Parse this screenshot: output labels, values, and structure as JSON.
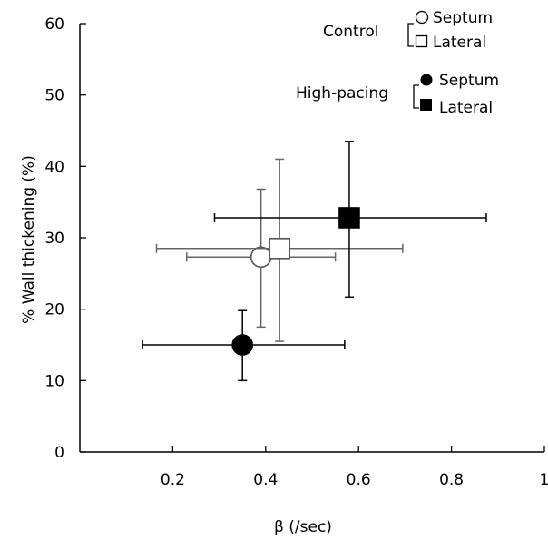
{
  "chart_data": {
    "type": "scatter",
    "xlabel": "β (/sec)",
    "ylabel": "% Wall thickening (%)",
    "xlim": [
      0,
      1
    ],
    "ylim": [
      0,
      60
    ],
    "xticks": [
      0.2,
      0.4,
      0.6,
      0.8,
      1
    ],
    "xtick_labels": [
      "0.2",
      "0.4",
      "0.6",
      "0.8",
      "1"
    ],
    "yticks": [
      0,
      10,
      20,
      30,
      40,
      50,
      60
    ],
    "ytick_labels": [
      "0",
      "10",
      "20",
      "30",
      "40",
      "50",
      "60"
    ],
    "grid": false,
    "legend_position": "top-right",
    "legend": {
      "groups": [
        {
          "label": "Control",
          "entries": [
            "Septum",
            "Lateral"
          ]
        },
        {
          "label": "High-pacing",
          "entries": [
            "Septum",
            "Lateral"
          ]
        }
      ]
    },
    "series": [
      {
        "group": "Control",
        "name": "Septum",
        "marker": "circle",
        "filled": false,
        "color": "#666666",
        "x": 0.39,
        "y": 27.3,
        "x_err": [
          0.23,
          0.55
        ],
        "y_err": [
          17.5,
          36.8
        ]
      },
      {
        "group": "Control",
        "name": "Lateral",
        "marker": "square",
        "filled": false,
        "color": "#666666",
        "x": 0.43,
        "y": 28.5,
        "x_err": [
          0.165,
          0.695
        ],
        "y_err": [
          15.5,
          41.0
        ]
      },
      {
        "group": "High-pacing",
        "name": "Septum",
        "marker": "circle",
        "filled": true,
        "color": "#000000",
        "x": 0.35,
        "y": 15.0,
        "x_err": [
          0.135,
          0.57
        ],
        "y_err": [
          10.0,
          19.8
        ]
      },
      {
        "group": "High-pacing",
        "name": "Lateral",
        "marker": "square",
        "filled": true,
        "color": "#000000",
        "x": 0.58,
        "y": 32.8,
        "x_err": [
          0.29,
          0.875
        ],
        "y_err": [
          21.7,
          43.5
        ]
      }
    ]
  }
}
